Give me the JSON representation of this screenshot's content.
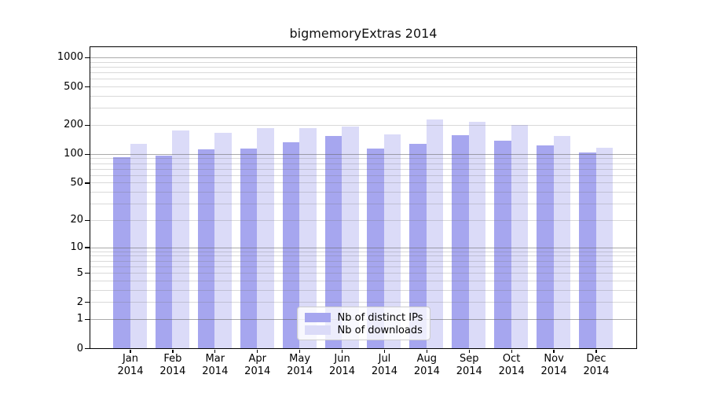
{
  "chart_data": {
    "type": "bar",
    "title": "bigmemoryExtras 2014",
    "xlabel": "",
    "ylabel": "",
    "categories": [
      "Jan 2014",
      "Feb 2014",
      "Mar 2014",
      "Apr 2014",
      "May 2014",
      "Jun 2014",
      "Jul 2014",
      "Aug 2014",
      "Sep 2014",
      "Oct 2014",
      "Nov 2014",
      "Dec 2014"
    ],
    "series": [
      {
        "name": "Nb of distinct IPs",
        "color": "#a6a6ef",
        "values": [
          93,
          96,
          112,
          113,
          133,
          155,
          114,
          127,
          158,
          137,
          123,
          103
        ]
      },
      {
        "name": "Nb of downloads",
        "color": "#dbdbf8",
        "values": [
          128,
          176,
          166,
          187,
          185,
          194,
          161,
          227,
          216,
          199,
          153,
          117
        ]
      }
    ],
    "yticks": [
      0,
      1,
      2,
      5,
      10,
      20,
      50,
      100,
      200,
      500,
      1000
    ],
    "ylim": [
      0,
      1275
    ],
    "scale": "log10(value+1)",
    "grid": "horizontal log major+minor lines drawn over bars",
    "legend_position": "inside lower-center",
    "colors": {
      "bar_distinct_ips": "#a6a6ef",
      "bar_downloads": "#dbdbf8",
      "grid_major": "#a8a8a8",
      "grid_minor": "#d6d6d6",
      "spine": "#000000"
    }
  }
}
